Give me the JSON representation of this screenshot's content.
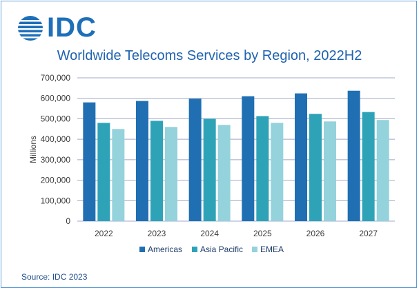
{
  "logo": {
    "text": "IDC"
  },
  "source": "Source: IDC 2023",
  "colors": {
    "Americas": "#1f6fb2",
    "Asia Pacific": "#2ea3b8",
    "EMEA": "#94d2dc",
    "grid": "#9fa8c8",
    "frame": "#5b9bd5"
  },
  "chart_data": {
    "type": "bar",
    "title": "Worldwide Telecoms Services by Region, 2022H2",
    "xlabel": "",
    "ylabel": "Millions",
    "ylim": [
      0,
      700000
    ],
    "yticks": [
      "0",
      "100,000",
      "200,000",
      "300,000",
      "400,000",
      "500,000",
      "600,000",
      "700,000"
    ],
    "categories": [
      "2022",
      "2023",
      "2024",
      "2025",
      "2026",
      "2027"
    ],
    "series": [
      {
        "name": "Americas",
        "values": [
          580000,
          587000,
          598000,
          610000,
          624000,
          637000
        ]
      },
      {
        "name": "Asia Pacific",
        "values": [
          480000,
          490000,
          500000,
          513000,
          524000,
          533000
        ]
      },
      {
        "name": "EMEA",
        "values": [
          450000,
          460000,
          470000,
          480000,
          487000,
          494000
        ]
      }
    ],
    "legend": "bottom",
    "grid": true
  }
}
